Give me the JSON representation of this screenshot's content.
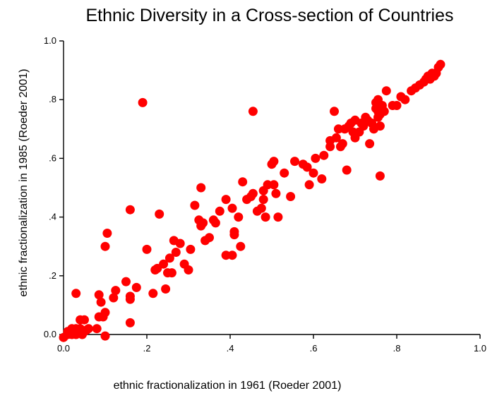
{
  "chart_data": {
    "type": "scatter",
    "title": "Ethnic Diversity in a Cross-section of Countries",
    "xlabel": "ethnic fractionalization in 1961 (Roeder 2001)",
    "ylabel": "ethnic fractionalization in 1985 (Roeder 2001)",
    "xlim": [
      0,
      1
    ],
    "ylim": [
      0,
      1
    ],
    "xticks": [
      0,
      0.2,
      0.4,
      0.6,
      0.8,
      1.0
    ],
    "xtick_labels": [
      "0.0",
      ".2",
      ".4",
      ".6",
      ".8",
      "1.0"
    ],
    "yticks": [
      0,
      0.2,
      0.4,
      0.6,
      0.8,
      1.0
    ],
    "ytick_labels": [
      "0.0",
      ".2",
      ".4",
      ".6",
      ".8",
      "1.0"
    ],
    "grid": false,
    "marker_color": "#ff0000",
    "points": [
      [
        0.0,
        -0.01
      ],
      [
        0.01,
        0.0
      ],
      [
        0.01,
        0.01
      ],
      [
        0.02,
        0.02
      ],
      [
        0.02,
        0.0
      ],
      [
        0.025,
        0.015
      ],
      [
        0.03,
        0.02
      ],
      [
        0.03,
        0.0
      ],
      [
        0.035,
        0.01
      ],
      [
        0.04,
        0.02
      ],
      [
        0.045,
        0.0
      ],
      [
        0.05,
        0.01
      ],
      [
        0.055,
        0.015
      ],
      [
        0.06,
        0.02
      ],
      [
        0.04,
        0.05
      ],
      [
        0.05,
        0.05
      ],
      [
        0.03,
        0.14
      ],
      [
        0.08,
        0.02
      ],
      [
        0.085,
        0.06
      ],
      [
        0.09,
        0.11
      ],
      [
        0.085,
        0.135
      ],
      [
        0.095,
        0.06
      ],
      [
        0.1,
        0.075
      ],
      [
        0.1,
        -0.005
      ],
      [
        0.1,
        0.3
      ],
      [
        0.105,
        0.345
      ],
      [
        0.12,
        0.125
      ],
      [
        0.125,
        0.15
      ],
      [
        0.15,
        0.18
      ],
      [
        0.16,
        0.12
      ],
      [
        0.16,
        0.13
      ],
      [
        0.16,
        0.04
      ],
      [
        0.175,
        0.16
      ],
      [
        0.16,
        0.425
      ],
      [
        0.19,
        0.79
      ],
      [
        0.2,
        0.29
      ],
      [
        0.215,
        0.14
      ],
      [
        0.22,
        0.22
      ],
      [
        0.225,
        0.225
      ],
      [
        0.23,
        0.41
      ],
      [
        0.24,
        0.24
      ],
      [
        0.245,
        0.155
      ],
      [
        0.25,
        0.21
      ],
      [
        0.255,
        0.26
      ],
      [
        0.26,
        0.21
      ],
      [
        0.265,
        0.32
      ],
      [
        0.27,
        0.28
      ],
      [
        0.28,
        0.31
      ],
      [
        0.29,
        0.24
      ],
      [
        0.3,
        0.22
      ],
      [
        0.305,
        0.29
      ],
      [
        0.315,
        0.44
      ],
      [
        0.325,
        0.39
      ],
      [
        0.33,
        0.37
      ],
      [
        0.33,
        0.5
      ],
      [
        0.335,
        0.38
      ],
      [
        0.34,
        0.32
      ],
      [
        0.35,
        0.33
      ],
      [
        0.36,
        0.39
      ],
      [
        0.365,
        0.38
      ],
      [
        0.375,
        0.42
      ],
      [
        0.39,
        0.27
      ],
      [
        0.39,
        0.46
      ],
      [
        0.405,
        0.27
      ],
      [
        0.405,
        0.43
      ],
      [
        0.41,
        0.35
      ],
      [
        0.41,
        0.34
      ],
      [
        0.42,
        0.4
      ],
      [
        0.425,
        0.3
      ],
      [
        0.43,
        0.52
      ],
      [
        0.44,
        0.46
      ],
      [
        0.45,
        0.47
      ],
      [
        0.455,
        0.48
      ],
      [
        0.455,
        0.76
      ],
      [
        0.465,
        0.42
      ],
      [
        0.475,
        0.43
      ],
      [
        0.48,
        0.49
      ],
      [
        0.485,
        0.4
      ],
      [
        0.48,
        0.46
      ],
      [
        0.49,
        0.51
      ],
      [
        0.5,
        0.58
      ],
      [
        0.505,
        0.59
      ],
      [
        0.505,
        0.51
      ],
      [
        0.51,
        0.48
      ],
      [
        0.515,
        0.4
      ],
      [
        0.53,
        0.55
      ],
      [
        0.545,
        0.47
      ],
      [
        0.555,
        0.59
      ],
      [
        0.575,
        0.58
      ],
      [
        0.585,
        0.57
      ],
      [
        0.59,
        0.51
      ],
      [
        0.6,
        0.55
      ],
      [
        0.605,
        0.6
      ],
      [
        0.62,
        0.53
      ],
      [
        0.625,
        0.61
      ],
      [
        0.64,
        0.66
      ],
      [
        0.64,
        0.64
      ],
      [
        0.65,
        0.76
      ],
      [
        0.655,
        0.67
      ],
      [
        0.66,
        0.7
      ],
      [
        0.665,
        0.64
      ],
      [
        0.67,
        0.65
      ],
      [
        0.675,
        0.7
      ],
      [
        0.68,
        0.56
      ],
      [
        0.685,
        0.71
      ],
      [
        0.69,
        0.72
      ],
      [
        0.695,
        0.69
      ],
      [
        0.7,
        0.73
      ],
      [
        0.7,
        0.67
      ],
      [
        0.71,
        0.69
      ],
      [
        0.715,
        0.72
      ],
      [
        0.72,
        0.71
      ],
      [
        0.725,
        0.74
      ],
      [
        0.73,
        0.73
      ],
      [
        0.735,
        0.65
      ],
      [
        0.74,
        0.72
      ],
      [
        0.745,
        0.7
      ],
      [
        0.75,
        0.79
      ],
      [
        0.75,
        0.77
      ],
      [
        0.755,
        0.8
      ],
      [
        0.755,
        0.76
      ],
      [
        0.755,
        0.74
      ],
      [
        0.76,
        0.75
      ],
      [
        0.76,
        0.71
      ],
      [
        0.76,
        0.54
      ],
      [
        0.765,
        0.78
      ],
      [
        0.77,
        0.76
      ],
      [
        0.775,
        0.83
      ],
      [
        0.79,
        0.78
      ],
      [
        0.8,
        0.78
      ],
      [
        0.81,
        0.81
      ],
      [
        0.82,
        0.8
      ],
      [
        0.835,
        0.83
      ],
      [
        0.845,
        0.84
      ],
      [
        0.855,
        0.85
      ],
      [
        0.865,
        0.86
      ],
      [
        0.87,
        0.87
      ],
      [
        0.875,
        0.88
      ],
      [
        0.88,
        0.87
      ],
      [
        0.885,
        0.89
      ],
      [
        0.89,
        0.88
      ],
      [
        0.895,
        0.89
      ],
      [
        0.9,
        0.91
      ],
      [
        0.905,
        0.92
      ]
    ]
  }
}
